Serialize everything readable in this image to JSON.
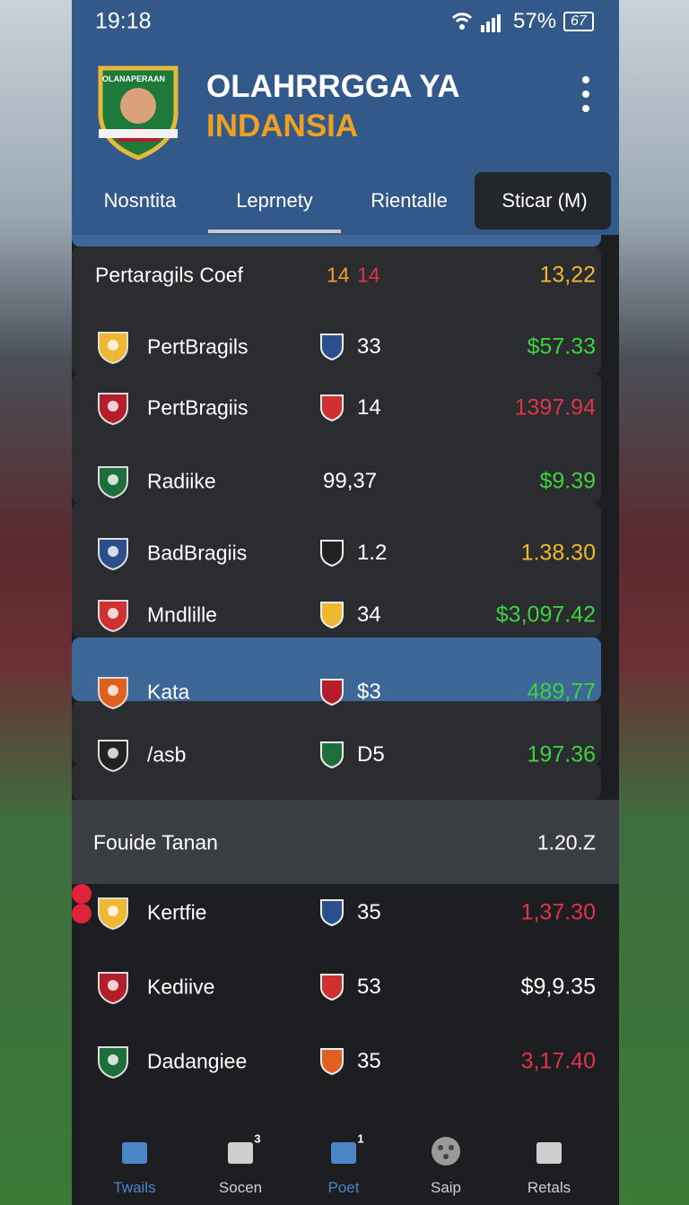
{
  "status": {
    "time": "19:18",
    "battery": "57%",
    "battery_icon": "67"
  },
  "header": {
    "logo_text": "OLANAPERAAN",
    "title_line1": "OLAHRRGGA YA",
    "title_line2": "INDANSIA"
  },
  "tabs": [
    "Nosntita",
    "Leprnety",
    "Rientalle",
    "Sticar (M)"
  ],
  "summary": {
    "label": "Pertaragils Coef",
    "score_a": "14",
    "score_b": "14",
    "value": "13,22"
  },
  "cards": [
    {
      "rows": [
        {
          "name": "PertBragils",
          "score": "33",
          "value": "$57.33"
        },
        {
          "name": "PertBragiis",
          "score": "14",
          "value": "1397.94"
        }
      ]
    },
    {
      "rows": [
        {
          "name": "Radiike",
          "score": "99,37",
          "value": "$9.39"
        }
      ]
    },
    {
      "rows": [
        {
          "name": "BadBragiis",
          "score": "1.2",
          "value": "1.38.30"
        },
        {
          "name": "Mndlille",
          "score": "34",
          "value": "$3,097.42"
        }
      ]
    },
    {
      "rows": [
        {
          "name": "Kata",
          "score": "$3",
          "value": "489,77"
        },
        {
          "name": "/asb",
          "score": "D5",
          "value": "197.36"
        }
      ]
    }
  ],
  "section": {
    "title": "Fouide Tanan",
    "value": "1.20.Z",
    "rows": [
      {
        "name": "Kertfie",
        "score": "35",
        "value": "1,37.30"
      }
    ],
    "cards": [
      {
        "rows": [
          {
            "name": "Kediive",
            "score": "53",
            "value": "$9,9.35"
          }
        ]
      },
      {
        "rows": [
          {
            "name": "Dadangiee",
            "score": "35",
            "value": "3,17.40"
          }
        ]
      }
    ]
  },
  "nav": [
    {
      "label": "Twails"
    },
    {
      "label": "Socen",
      "badge": "3"
    },
    {
      "label": "Poet",
      "badge": "1"
    },
    {
      "label": "Saip"
    },
    {
      "label": "Retals"
    }
  ]
}
